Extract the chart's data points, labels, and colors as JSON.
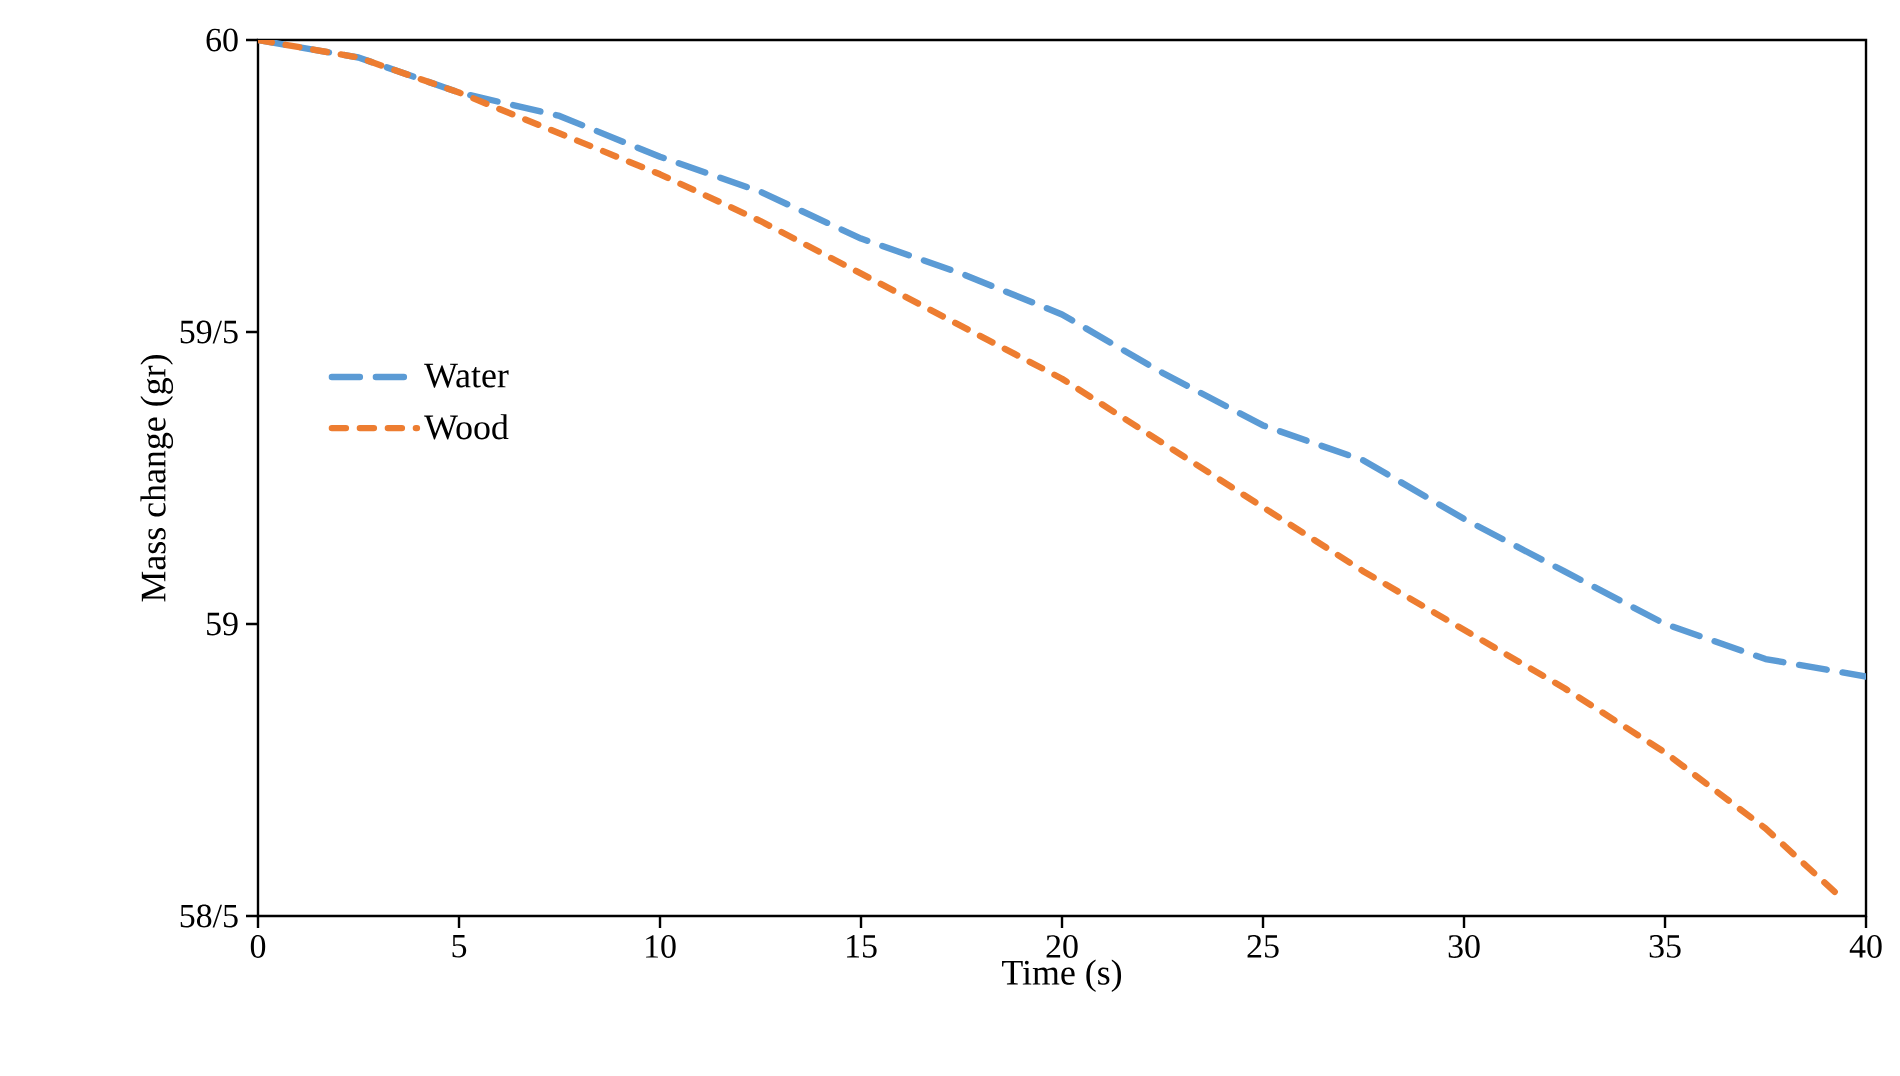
{
  "chart_data": {
    "type": "line",
    "xlabel": "Time (s)",
    "ylabel": "Mass change (gr)",
    "x": [
      0,
      2.5,
      5,
      7.5,
      10,
      12.5,
      15,
      17.5,
      20,
      22.5,
      25,
      27.5,
      30,
      32.5,
      35,
      37.5,
      40
    ],
    "series": [
      {
        "name": "Water",
        "color": "#5b9bd5",
        "line_style": "dashed",
        "values": [
          60,
          59.97,
          59.91,
          59.87,
          59.8,
          59.74,
          59.66,
          59.6,
          59.53,
          59.43,
          59.34,
          59.28,
          59.18,
          59.09,
          59.0,
          58.94,
          58.91
        ]
      },
      {
        "name": "Wood",
        "color": "#ed7d31",
        "line_style": "dashed",
        "x": [
          0,
          2.5,
          5,
          7.5,
          10,
          12.5,
          15,
          17.5,
          20,
          22.5,
          25,
          27.5,
          30,
          32.5,
          35,
          37.5,
          39.4
        ],
        "values": [
          60,
          59.97,
          59.91,
          59.84,
          59.77,
          59.69,
          59.6,
          59.51,
          59.42,
          59.31,
          59.2,
          59.09,
          58.99,
          58.89,
          58.78,
          58.65,
          58.53
        ]
      }
    ],
    "xlim": [
      0,
      40
    ],
    "xticks": [
      0,
      5,
      10,
      15,
      20,
      25,
      30,
      35,
      40
    ],
    "ylim": [
      58.5,
      60
    ],
    "yticks": [
      {
        "value": 58.5,
        "label": "58/5"
      },
      59,
      {
        "value": 59.5,
        "label": "59/5"
      },
      60
    ],
    "grid": false,
    "legend": "left",
    "marker": "none"
  }
}
